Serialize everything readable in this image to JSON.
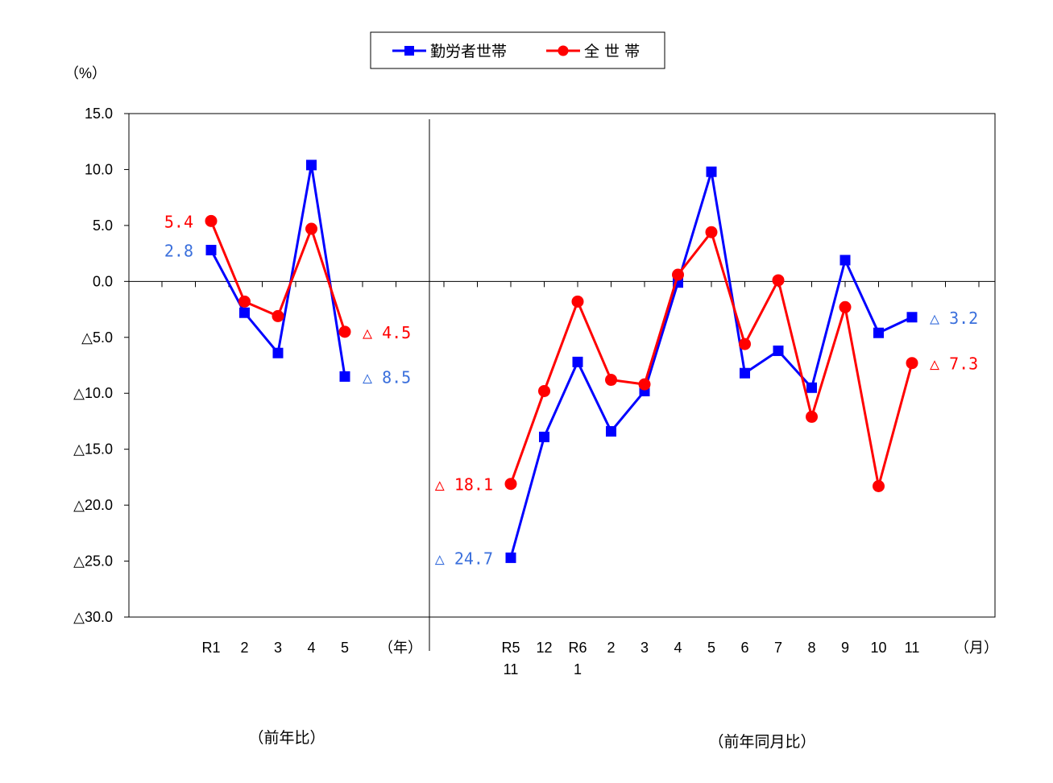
{
  "chart_data": {
    "type": "line",
    "unit_label": "（%）",
    "ylim": [
      -30,
      15
    ],
    "yticks": [
      15,
      10,
      5,
      0,
      -5,
      -10,
      -15,
      -20,
      -25,
      -30
    ],
    "ytick_labels": [
      "15.0",
      "10.0",
      "5.0",
      "0.0",
      "△5.0",
      "△10.0",
      "△15.0",
      "△20.0",
      "△25.0",
      "△30.0"
    ],
    "colors": {
      "worker": "#0000ff",
      "all": "#ff0000",
      "label_worker": "#3a6fdc",
      "label_all": "#ff0000"
    },
    "legend": {
      "position": "top-center",
      "entries": [
        {
          "key": "worker",
          "name": "勤労者世帯",
          "marker": "square"
        },
        {
          "key": "all",
          "name": "全 世 帯",
          "marker": "circle"
        }
      ]
    },
    "panels": [
      {
        "caption": "（前年比）",
        "unit": "（年）",
        "categories": [
          {
            "line1": "R1",
            "line2": ""
          },
          {
            "line1": "2",
            "line2": ""
          },
          {
            "line1": "3",
            "line2": ""
          },
          {
            "line1": "4",
            "line2": ""
          },
          {
            "line1": "5",
            "line2": ""
          }
        ],
        "series": [
          {
            "key": "worker",
            "values": [
              2.8,
              -2.8,
              -6.4,
              10.4,
              -8.5
            ]
          },
          {
            "key": "all",
            "values": [
              5.4,
              -1.8,
              -3.1,
              4.7,
              -4.5
            ]
          }
        ],
        "labels": [
          {
            "key": "all",
            "index": 0,
            "side": "left",
            "text": "5.4"
          },
          {
            "key": "worker",
            "index": 0,
            "side": "left",
            "text": "2.8"
          },
          {
            "key": "all",
            "index": 4,
            "side": "right",
            "text": "△ 4.5"
          },
          {
            "key": "worker",
            "index": 4,
            "side": "right",
            "text": "△ 8.5"
          }
        ]
      },
      {
        "caption": "（前年同月比）",
        "unit": "（月）",
        "categories": [
          {
            "line1": "R5",
            "line2": "11"
          },
          {
            "line1": "12",
            "line2": ""
          },
          {
            "line1": "R6",
            "line2": "1"
          },
          {
            "line1": "2",
            "line2": ""
          },
          {
            "line1": "3",
            "line2": ""
          },
          {
            "line1": "4",
            "line2": ""
          },
          {
            "line1": "5",
            "line2": ""
          },
          {
            "line1": "6",
            "line2": ""
          },
          {
            "line1": "7",
            "line2": ""
          },
          {
            "line1": "8",
            "line2": ""
          },
          {
            "line1": "9",
            "line2": ""
          },
          {
            "line1": "10",
            "line2": ""
          },
          {
            "line1": "11",
            "line2": ""
          }
        ],
        "series": [
          {
            "key": "worker",
            "values": [
              -24.7,
              -13.9,
              -7.2,
              -13.4,
              -9.8,
              -0.1,
              9.8,
              -8.2,
              -6.2,
              -9.5,
              1.9,
              -4.6,
              -3.2
            ]
          },
          {
            "key": "all",
            "values": [
              -18.1,
              -9.8,
              -1.8,
              -8.8,
              -9.2,
              0.6,
              4.4,
              -5.6,
              0.1,
              -12.1,
              -2.3,
              -18.3,
              -7.3
            ]
          }
        ],
        "labels": [
          {
            "key": "all",
            "index": 0,
            "side": "left",
            "text": "△ 18.1"
          },
          {
            "key": "worker",
            "index": 0,
            "side": "left",
            "text": "△ 24.7"
          },
          {
            "key": "worker",
            "index": 12,
            "side": "right",
            "text": "△ 3.2"
          },
          {
            "key": "all",
            "index": 12,
            "side": "right",
            "text": "△ 7.3"
          }
        ]
      }
    ]
  }
}
